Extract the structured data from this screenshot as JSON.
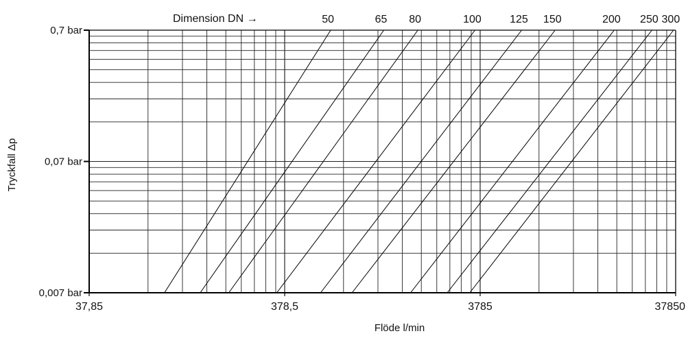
{
  "chart_data": {
    "type": "line",
    "title": "",
    "xlabel": "Flöde l/min",
    "ylabel": "Tryckfall Δp",
    "x_scale": "log",
    "y_scale": "log",
    "xlim": [
      37.85,
      37850
    ],
    "ylim": [
      0.007,
      0.7
    ],
    "x_ticks": [
      {
        "value": 37.85,
        "label": "37,85"
      },
      {
        "value": 378.5,
        "label": "378,5"
      },
      {
        "value": 3785,
        "label": "3785"
      },
      {
        "value": 37850,
        "label": "37850"
      }
    ],
    "y_ticks": [
      {
        "value": 0.7,
        "label": "0,7 bar"
      },
      {
        "value": 0.07,
        "label": "0,07 bar"
      },
      {
        "value": 0.007,
        "label": "0,007 bar"
      }
    ],
    "grid": true,
    "legend_title": "Dimension DN →",
    "series": [
      {
        "name": "50",
        "x": [
          91.9,
          651
        ],
        "y": [
          0.007,
          0.7
        ]
      },
      {
        "name": "65",
        "x": [
          140,
          1217
        ],
        "y": [
          0.007,
          0.7
        ]
      },
      {
        "name": "80",
        "x": [
          196,
          1817
        ],
        "y": [
          0.007,
          0.7
        ]
      },
      {
        "name": "100",
        "x": [
          345,
          3561
        ],
        "y": [
          0.007,
          0.7
        ]
      },
      {
        "name": "125",
        "x": [
          578,
          6170
        ],
        "y": [
          0.007,
          0.7
        ]
      },
      {
        "name": "150",
        "x": [
          837,
          9152
        ],
        "y": [
          0.007,
          0.7
        ]
      },
      {
        "name": "200",
        "x": [
          1668,
          18360
        ],
        "y": [
          0.007,
          0.7
        ]
      },
      {
        "name": "250",
        "x": [
          2568,
          28620
        ],
        "y": [
          0.007,
          0.7
        ]
      },
      {
        "name": "300",
        "x": [
          3350,
          36910
        ],
        "y": [
          0.007,
          0.7
        ]
      }
    ]
  }
}
